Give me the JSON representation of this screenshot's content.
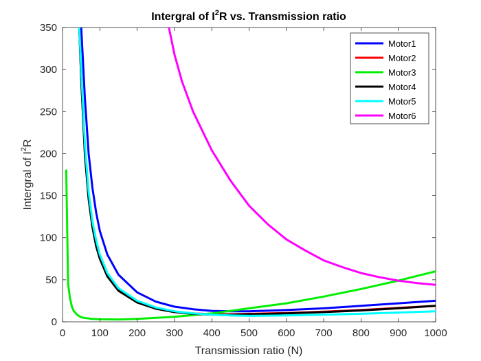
{
  "chart_data": {
    "type": "line",
    "title": {
      "pre": "Intergral of I",
      "sup": "2",
      "post": "R vs. Transmission ratio"
    },
    "xlabel": "Transmission ratio (N)",
    "ylabel": {
      "pre": "Intergral of I",
      "sup": "2",
      "post": "R"
    },
    "xlim": [
      0,
      1000
    ],
    "ylim": [
      0,
      350
    ],
    "xticks": [
      0,
      100,
      200,
      300,
      400,
      500,
      600,
      700,
      800,
      900,
      1000
    ],
    "yticks": [
      0,
      50,
      100,
      150,
      200,
      250,
      300,
      350
    ],
    "grid": false,
    "legend_position": "top-right",
    "series": [
      {
        "name": "Motor1",
        "color": "#0000ff",
        "x": [
          50,
          60,
          70,
          80,
          90,
          100,
          120,
          150,
          200,
          250,
          300,
          350,
          400,
          450,
          500,
          600,
          700,
          800,
          900,
          1000
        ],
        "y": [
          350,
          265,
          200,
          160,
          130,
          108,
          80,
          56,
          35,
          24,
          18,
          15,
          13,
          12.5,
          12.5,
          14,
          16,
          19,
          22,
          25
        ]
      },
      {
        "name": "Motor2",
        "color": "#ff0000",
        "x": [
          45,
          50,
          60,
          70,
          80,
          90,
          100,
          120,
          150,
          200,
          250,
          300,
          350,
          400,
          450,
          500,
          600,
          700,
          800,
          900,
          1000
        ],
        "y": [
          350,
          290,
          200,
          148,
          115,
          92,
          76,
          55,
          38,
          24,
          16,
          12,
          10,
          9,
          9,
          9.5,
          10.5,
          12,
          14,
          16.5,
          19
        ]
      },
      {
        "name": "Motor3",
        "color": "#00ee00",
        "x": [
          10,
          15,
          20,
          25,
          30,
          40,
          50,
          60,
          80,
          100,
          150,
          200,
          300,
          400,
          500,
          600,
          700,
          800,
          900,
          1000
        ],
        "y": [
          180,
          45,
          28,
          18,
          13,
          8,
          5.5,
          4.5,
          3.5,
          3,
          2.8,
          3.5,
          6,
          10,
          16,
          22,
          30,
          39,
          49,
          60
        ]
      },
      {
        "name": "Motor4",
        "color": "#000000",
        "x": [
          45,
          50,
          60,
          70,
          80,
          90,
          100,
          120,
          150,
          200,
          250,
          300,
          350,
          400,
          450,
          500,
          600,
          700,
          800,
          900,
          1000
        ],
        "y": [
          350,
          288,
          198,
          146,
          113,
          90,
          75,
          54,
          37,
          23,
          15.5,
          11.5,
          9.5,
          8.5,
          8.5,
          9,
          10,
          11.5,
          13.5,
          16,
          19
        ]
      },
      {
        "name": "Motor5",
        "color": "#00ffff",
        "x": [
          45,
          50,
          60,
          70,
          80,
          90,
          100,
          120,
          150,
          200,
          250,
          300,
          350,
          400,
          450,
          500,
          600,
          700,
          800,
          900,
          1000
        ],
        "y": [
          350,
          300,
          210,
          155,
          120,
          97,
          80,
          58,
          40,
          25,
          17,
          12.5,
          10,
          8.5,
          7.5,
          7,
          7.5,
          8.5,
          9.5,
          11,
          12.5
        ]
      },
      {
        "name": "Motor6",
        "color": "#ff00ff",
        "x": [
          285,
          300,
          320,
          350,
          400,
          450,
          500,
          550,
          600,
          650,
          700,
          750,
          800,
          850,
          900,
          950,
          1000
        ],
        "y": [
          350,
          318,
          286,
          250,
          204,
          168,
          138,
          116,
          98,
          85,
          73,
          65,
          58,
          53,
          49,
          46,
          44
        ]
      }
    ]
  }
}
